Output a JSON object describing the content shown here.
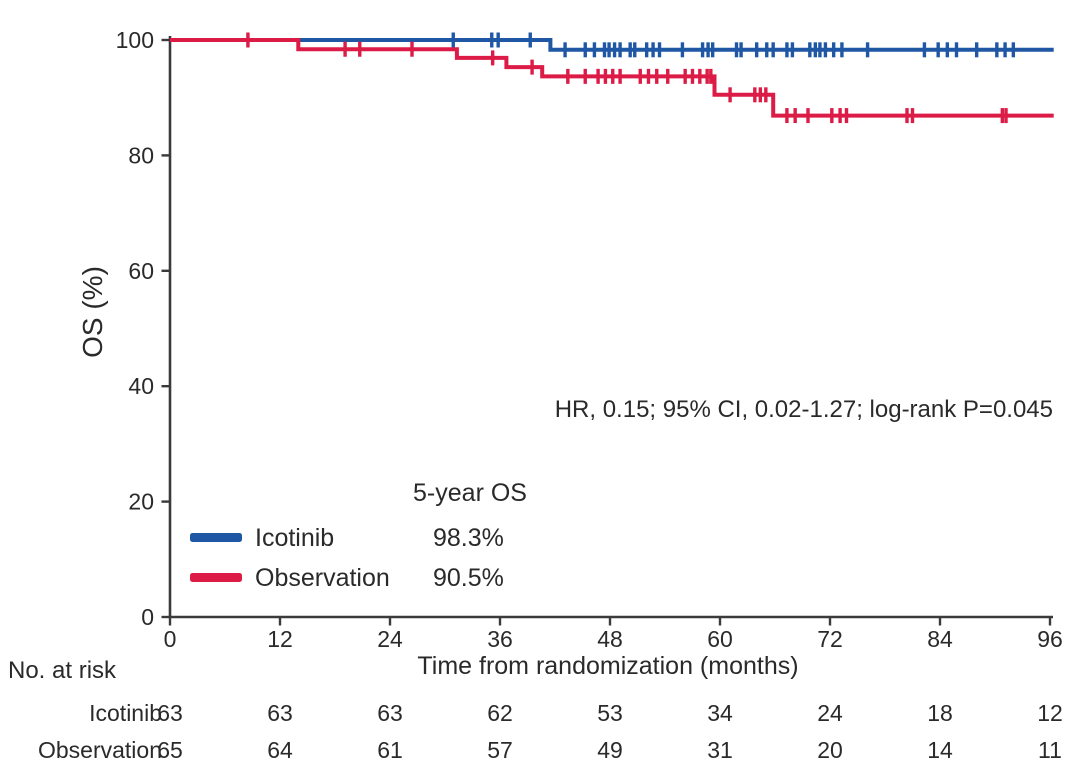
{
  "figure": {
    "bg": "#ffffff",
    "text_color": "#2a2a2b",
    "axis_color": "#3a3a3c"
  },
  "chart_data": {
    "type": "line",
    "subtype": "kaplan-meier-step",
    "title": "",
    "xlabel": "Time from randomization (months)",
    "ylabel": "OS (%)",
    "xlim": [
      0,
      96
    ],
    "ylim": [
      0,
      100
    ],
    "xticks": [
      0,
      12,
      24,
      36,
      48,
      60,
      72,
      84,
      96
    ],
    "yticks": [
      0,
      20,
      40,
      60,
      80,
      100
    ],
    "grid": false,
    "annotation": "HR, 0.15; 95% CI, 0.02-1.27; log-rank P=0.045",
    "legend": {
      "header": "5-year OS",
      "position": "lower-left",
      "entries": [
        {
          "label": "Icotinib",
          "value": "98.3%",
          "color": "#1f57a5"
        },
        {
          "label": "Observation",
          "value": "90.5%",
          "color": "#dc1b46"
        }
      ]
    },
    "series": [
      {
        "name": "Icotinib",
        "color": "#1f57a5",
        "steps": [
          [
            0,
            100
          ],
          [
            41.5,
            100
          ],
          [
            41.5,
            98.3
          ],
          [
            96.4,
            98.3
          ]
        ],
        "censors": [
          [
            30.9,
            100
          ],
          [
            35.1,
            100
          ],
          [
            35.8,
            100
          ],
          [
            39.3,
            100
          ],
          [
            43.1,
            98.3
          ],
          [
            45.3,
            98.3
          ],
          [
            46.3,
            98.3
          ],
          [
            47.4,
            98.3
          ],
          [
            47.9,
            98.3
          ],
          [
            48.5,
            98.3
          ],
          [
            49.1,
            98.3
          ],
          [
            50.2,
            98.3
          ],
          [
            50.7,
            98.3
          ],
          [
            52.0,
            98.3
          ],
          [
            52.7,
            98.3
          ],
          [
            53.4,
            98.3
          ],
          [
            55.9,
            98.3
          ],
          [
            58.1,
            98.3
          ],
          [
            58.7,
            98.3
          ],
          [
            59.2,
            98.3
          ],
          [
            61.8,
            98.3
          ],
          [
            62.3,
            98.3
          ],
          [
            64.0,
            98.3
          ],
          [
            65.1,
            98.3
          ],
          [
            65.8,
            98.3
          ],
          [
            67.3,
            98.3
          ],
          [
            67.9,
            98.3
          ],
          [
            69.8,
            98.3
          ],
          [
            70.4,
            98.3
          ],
          [
            70.9,
            98.3
          ],
          [
            71.5,
            98.3
          ],
          [
            72.4,
            98.3
          ],
          [
            73.3,
            98.3
          ],
          [
            76.1,
            98.3
          ],
          [
            82.3,
            98.3
          ],
          [
            83.8,
            98.3
          ],
          [
            84.8,
            98.3
          ],
          [
            85.8,
            98.3
          ],
          [
            88.0,
            98.3
          ],
          [
            90.2,
            98.3
          ],
          [
            91.1,
            98.3
          ],
          [
            92.0,
            98.3
          ]
        ]
      },
      {
        "name": "Observation",
        "color": "#dc1b46",
        "steps": [
          [
            0,
            100
          ],
          [
            14.0,
            100
          ],
          [
            14.0,
            98.4
          ],
          [
            31.3,
            98.4
          ],
          [
            31.3,
            96.9
          ],
          [
            36.7,
            96.9
          ],
          [
            36.7,
            95.3
          ],
          [
            40.6,
            95.3
          ],
          [
            40.6,
            93.7
          ],
          [
            59.4,
            93.7
          ],
          [
            59.4,
            90.5
          ],
          [
            65.8,
            90.5
          ],
          [
            65.8,
            86.9
          ],
          [
            96.4,
            86.9
          ]
        ],
        "censors": [
          [
            8.5,
            100
          ],
          [
            19.1,
            98.4
          ],
          [
            20.7,
            98.4
          ],
          [
            26.4,
            98.4
          ],
          [
            35.2,
            96.9
          ],
          [
            39.5,
            95.3
          ],
          [
            43.4,
            93.7
          ],
          [
            45.3,
            93.7
          ],
          [
            46.7,
            93.7
          ],
          [
            47.5,
            93.7
          ],
          [
            48.3,
            93.7
          ],
          [
            49.1,
            93.7
          ],
          [
            51.3,
            93.7
          ],
          [
            52.2,
            93.7
          ],
          [
            53.1,
            93.7
          ],
          [
            54.3,
            93.7
          ],
          [
            56.2,
            93.7
          ],
          [
            57.0,
            93.7
          ],
          [
            57.8,
            93.7
          ],
          [
            58.6,
            93.7
          ],
          [
            59.0,
            93.7
          ],
          [
            61.1,
            90.5
          ],
          [
            63.8,
            90.5
          ],
          [
            64.4,
            90.5
          ],
          [
            65.0,
            90.5
          ],
          [
            67.3,
            86.9
          ],
          [
            68.2,
            86.9
          ],
          [
            69.6,
            86.9
          ],
          [
            72.2,
            86.9
          ],
          [
            73.1,
            86.9
          ],
          [
            73.8,
            86.9
          ],
          [
            80.4,
            86.9
          ],
          [
            81.0,
            86.9
          ],
          [
            90.8,
            86.9
          ],
          [
            91.2,
            86.9
          ]
        ]
      }
    ],
    "risk_table": {
      "title": "No. at risk",
      "times": [
        0,
        12,
        24,
        36,
        48,
        60,
        72,
        84,
        96
      ],
      "rows": [
        {
          "label": "Icotinib",
          "counts": [
            "63",
            "63",
            "63",
            "62",
            "53",
            "34",
            "24",
            "18",
            "12"
          ]
        },
        {
          "label": "Observation",
          "counts": [
            "65",
            "64",
            "61",
            "57",
            "49",
            "31",
            "20",
            "14",
            "11"
          ]
        }
      ]
    }
  }
}
